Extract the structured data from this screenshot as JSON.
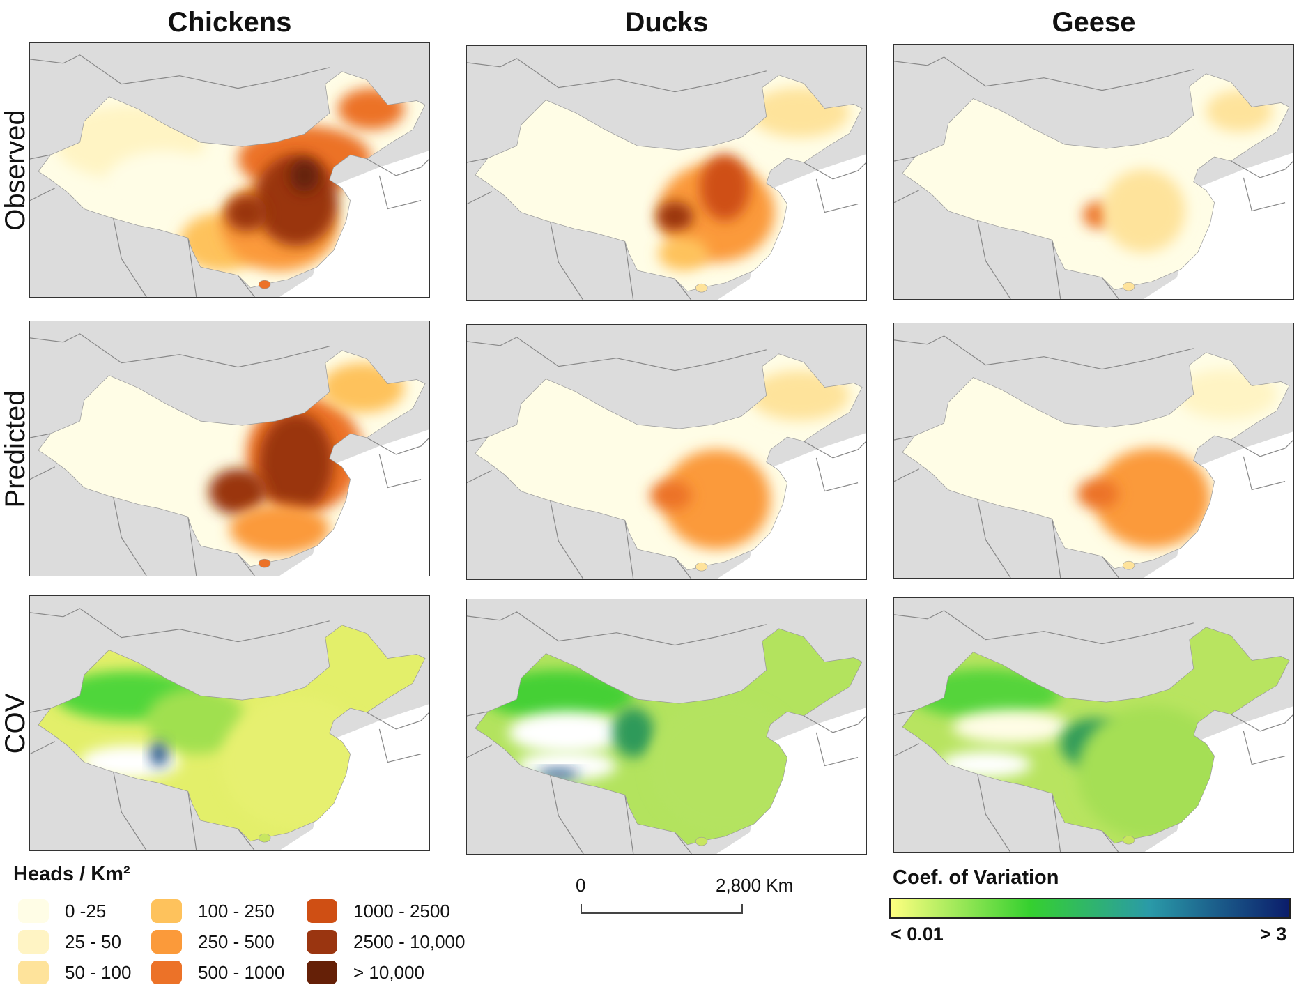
{
  "columns": [
    "Chickens",
    "Ducks",
    "Geese"
  ],
  "rows": [
    "Observed",
    "Predicted",
    "COV"
  ],
  "density_legend": {
    "title": "Heads / Km²",
    "items": [
      {
        "label": "0 -25",
        "color": "#fffde6"
      },
      {
        "label": "25 - 50",
        "color": "#fff4c4"
      },
      {
        "label": "50 - 100",
        "color": "#fee39b"
      },
      {
        "label": "100 - 250",
        "color": "#fec25c"
      },
      {
        "label": "250 - 500",
        "color": "#fb9a3a"
      },
      {
        "label": "500 - 1000",
        "color": "#ec7228"
      },
      {
        "label": "1000 - 2500",
        "color": "#cf4f14"
      },
      {
        "label": "2500 - 10,000",
        "color": "#9a3510"
      },
      {
        "label": "> 10,000",
        "color": "#652007"
      }
    ]
  },
  "scale_bar": {
    "start_label": "0",
    "end_label": "2,800 Km"
  },
  "cov_legend": {
    "title": "Coef. of Variation",
    "min_label": "< 0.01",
    "max_label": "> 3",
    "colors": [
      "#ffff80",
      "#35d02f",
      "#2a9aa8",
      "#0b1d6b"
    ]
  }
}
